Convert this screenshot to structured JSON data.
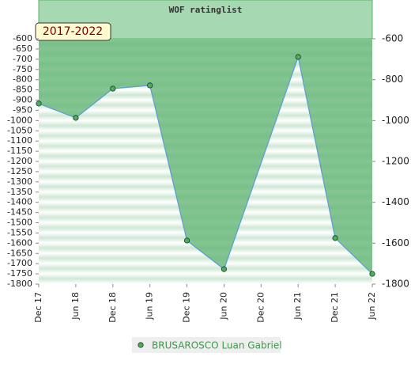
{
  "chart_data": {
    "type": "area",
    "title": "WOF ratinglist",
    "period_label": "2017-2022",
    "xticks": [
      "Dec 17",
      "Jun 18",
      "Dec 18",
      "Jun 19",
      "Dec 19",
      "Jun 20",
      "Dec 20",
      "Jun 21",
      "Dec 21",
      "Jun 22"
    ],
    "series": [
      {
        "name": "BRUSAROSCO Luan Gabriel",
        "color": "#5b9bd5",
        "marker_color": "#4caf50",
        "fill_color": "#5cb26f",
        "x": [
          "Dec 17",
          "Jun 18",
          "Dec 18",
          "Jun 19",
          "Dec 19",
          "Jun 20",
          "Jun 21",
          "Dec 21",
          "Jun 22"
        ],
        "values": [
          -917,
          -987,
          -844,
          -828,
          -1587,
          -1727,
          -689,
          -1575,
          -1750
        ]
      }
    ],
    "ylim": [
      -600,
      -1800
    ],
    "yticks": [
      -600,
      -650,
      -700,
      -750,
      -800,
      -850,
      -900,
      -950,
      -1000,
      -1050,
      -1100,
      -1150,
      -1200,
      -1250,
      -1300,
      -1350,
      -1400,
      -1450,
      -1500,
      -1550,
      -1600,
      -1650,
      -1700,
      -1750,
      -1800
    ],
    "y2lim": [
      -600,
      -1800
    ],
    "y2ticks": [
      -600,
      -800,
      -1000,
      -1200,
      -1400,
      -1600,
      -1800
    ],
    "legend": "bottom"
  }
}
